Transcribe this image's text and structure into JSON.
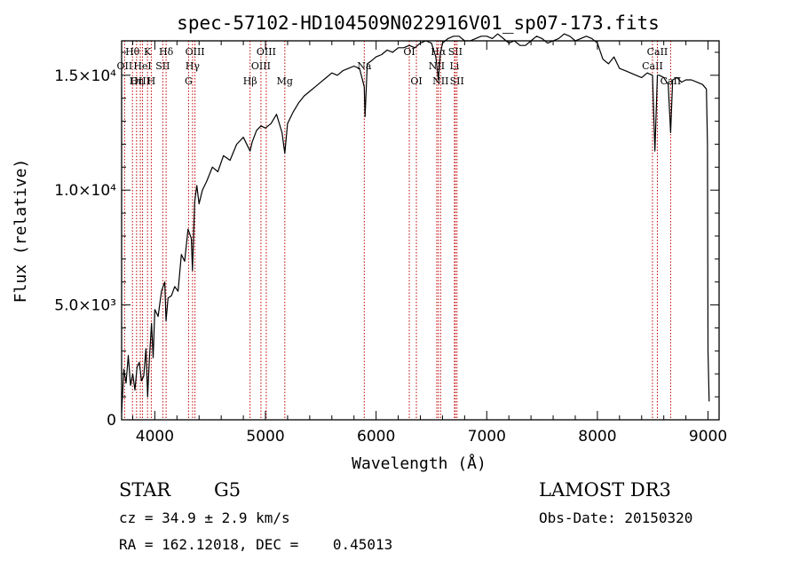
{
  "chart_data": {
    "type": "line",
    "title": "spec-57102-HD104509N022916V01_sp07-173.fits",
    "xlabel": "Wavelength (Å)",
    "ylabel": "Flux (relative)",
    "xlim": [
      3700,
      9100
    ],
    "ylim": [
      0,
      16500
    ],
    "x_ticks": [
      {
        "value": 4000,
        "label": "4000"
      },
      {
        "value": 5000,
        "label": "5000"
      },
      {
        "value": 6000,
        "label": "6000"
      },
      {
        "value": 7000,
        "label": "7000"
      },
      {
        "value": 8000,
        "label": "8000"
      },
      {
        "value": 9000,
        "label": "9000"
      }
    ],
    "y_ticks": [
      {
        "value": 0,
        "label": "0"
      },
      {
        "value": 5000,
        "label": "5.0×10³"
      },
      {
        "value": 10000,
        "label": "1.0×10⁴"
      },
      {
        "value": 15000,
        "label": "1.5×10⁴"
      }
    ],
    "series": [
      {
        "name": "Flux",
        "x": [
          3700,
          3720,
          3740,
          3760,
          3780,
          3800,
          3820,
          3840,
          3860,
          3880,
          3900,
          3920,
          3935,
          3950,
          3970,
          3985,
          4000,
          4030,
          4060,
          4090,
          4101,
          4120,
          4150,
          4180,
          4210,
          4240,
          4270,
          4300,
          4330,
          4340,
          4360,
          4380,
          4400,
          4430,
          4470,
          4520,
          4570,
          4620,
          4680,
          4740,
          4800,
          4861,
          4880,
          4920,
          4960,
          5000,
          5050,
          5100,
          5150,
          5175,
          5200,
          5250,
          5300,
          5350,
          5400,
          5450,
          5500,
          5550,
          5600,
          5650,
          5700,
          5750,
          5800,
          5850,
          5893,
          5900,
          5920,
          5950,
          6000,
          6050,
          6100,
          6150,
          6200,
          6250,
          6300,
          6350,
          6400,
          6450,
          6500,
          6540,
          6563,
          6580,
          6600,
          6650,
          6700,
          6750,
          6800,
          6850,
          6900,
          6950,
          7000,
          7050,
          7100,
          7150,
          7200,
          7250,
          7300,
          7350,
          7400,
          7450,
          7500,
          7550,
          7600,
          7650,
          7700,
          7750,
          7800,
          7850,
          7900,
          7950,
          8000,
          8050,
          8100,
          8150,
          8200,
          8250,
          8300,
          8350,
          8400,
          8450,
          8498,
          8520,
          8542,
          8560,
          8600,
          8640,
          8662,
          8680,
          8720,
          8760,
          8800,
          8850,
          8900,
          8950,
          8985,
          8995,
          9000,
          9010
        ],
        "values": [
          300,
          2200,
          1600,
          2800,
          1500,
          2000,
          1300,
          2300,
          2500,
          1700,
          1900,
          3100,
          1000,
          2600,
          4200,
          2700,
          4800,
          4500,
          5600,
          6000,
          4300,
          5300,
          5400,
          5800,
          5600,
          7200,
          6900,
          8300,
          7900,
          6500,
          9500,
          10200,
          9400,
          10000,
          10400,
          11000,
          10800,
          11500,
          11300,
          12000,
          12300,
          11700,
          12100,
          12600,
          12800,
          12700,
          12900,
          13300,
          12500,
          11600,
          12900,
          13400,
          13800,
          14100,
          14300,
          14500,
          14700,
          14900,
          15100,
          15000,
          15200,
          15300,
          15400,
          15300,
          14500,
          13200,
          15500,
          15600,
          15800,
          15900,
          16100,
          16000,
          16200,
          16200,
          16300,
          16200,
          16400,
          16500,
          16400,
          15800,
          14800,
          15900,
          16400,
          16600,
          16700,
          16700,
          16500,
          16500,
          16600,
          16700,
          16700,
          16600,
          16800,
          16600,
          16400,
          16500,
          16300,
          16300,
          16500,
          16700,
          16600,
          16400,
          16500,
          16600,
          16800,
          16700,
          16500,
          16600,
          16700,
          16600,
          16400,
          15700,
          15500,
          15800,
          15300,
          15200,
          15100,
          15000,
          14900,
          15100,
          15000,
          11700,
          15000,
          15000,
          14900,
          14600,
          12500,
          14800,
          14900,
          14700,
          14800,
          14800,
          14700,
          14600,
          14400,
          12000,
          3000,
          800
        ]
      }
    ],
    "spectral_lines": [
      {
        "label": "Hθ",
        "x": 3798,
        "row": 1
      },
      {
        "label": "OII",
        "x": 3727,
        "row": 2
      },
      {
        "label": "OIII",
        "x": 3869,
        "row": 3
      },
      {
        "label": "Hη",
        "x": 3835,
        "row": 3
      },
      {
        "label": "K",
        "x": 3934,
        "row": 1
      },
      {
        "label": "HeI",
        "x": 3889,
        "row": 2
      },
      {
        "label": "H",
        "x": 3968,
        "row": 3
      },
      {
        "label": "SII",
        "x": 4072,
        "row": 2
      },
      {
        "label": "Hδ",
        "x": 4102,
        "row": 1
      },
      {
        "label": "OIII",
        "x": 4363,
        "row": 1
      },
      {
        "label": "Hγ",
        "x": 4341,
        "row": 2
      },
      {
        "label": "G",
        "x": 4305,
        "row": 3
      },
      {
        "label": "Hβ",
        "x": 4861,
        "row": 3
      },
      {
        "label": "OIII",
        "x": 4959,
        "row": 2
      },
      {
        "label": "OIII",
        "x": 5007,
        "row": 1
      },
      {
        "label": "Mg",
        "x": 5175,
        "row": 3
      },
      {
        "label": "Na",
        "x": 5893,
        "row": 2
      },
      {
        "label": "OI",
        "x": 6300,
        "row": 1
      },
      {
        "label": "OI",
        "x": 6364,
        "row": 3
      },
      {
        "label": "Hα",
        "x": 6563,
        "row": 1
      },
      {
        "label": "NII",
        "x": 6548,
        "row": 2
      },
      {
        "label": "NII",
        "x": 6583,
        "row": 3
      },
      {
        "label": "SII",
        "x": 6716,
        "row": 1
      },
      {
        "label": "Li",
        "x": 6708,
        "row": 2
      },
      {
        "label": "SII",
        "x": 6731,
        "row": 3
      },
      {
        "label": "CaII",
        "x": 8498,
        "row": 2
      },
      {
        "label": "CaII",
        "x": 8542,
        "row": 1
      },
      {
        "label": "CaII",
        "x": 8662,
        "row": 3
      }
    ]
  },
  "info": {
    "object_class": "STAR",
    "subclass": "G5",
    "survey": "LAMOST DR3",
    "redshift": "cz = 34.9 ± 2.9 km/s",
    "obs_date": "Obs-Date: 20150320",
    "coords": "RA = 162.12018, DEC =    0.45013"
  },
  "colors": {
    "spectrum": "#000000",
    "line_marker": "#c00000",
    "axis": "#000000",
    "background": "#ffffff"
  }
}
